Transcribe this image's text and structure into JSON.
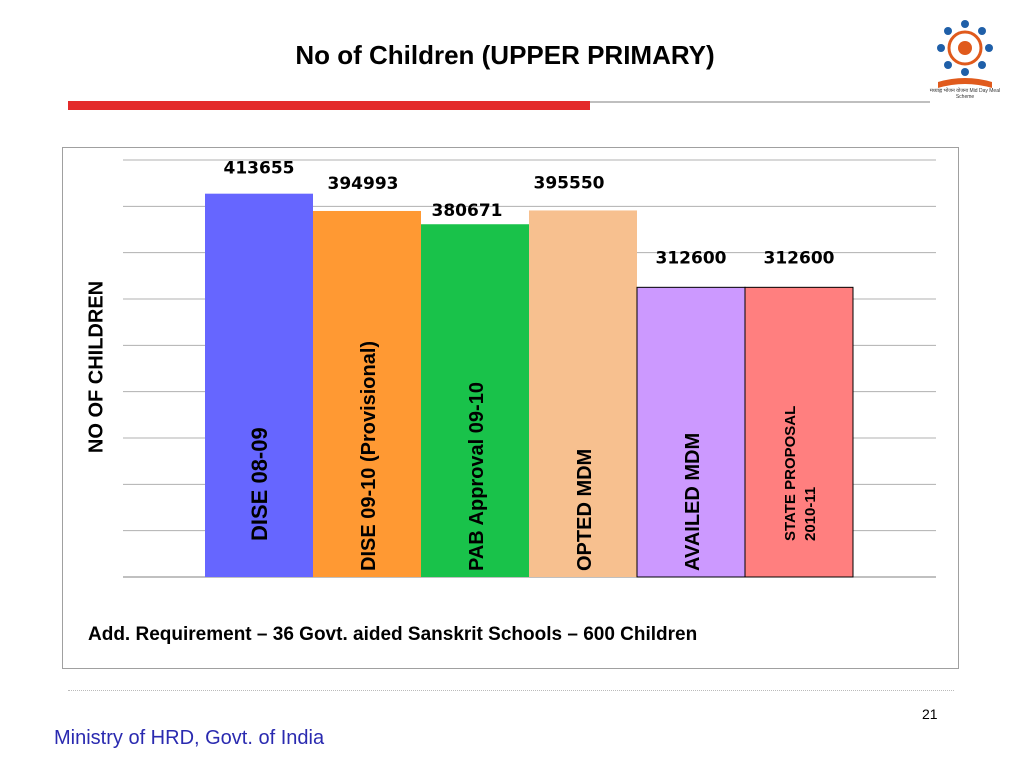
{
  "slide": {
    "title": "No of Children (UPPER PRIMARY)",
    "page_number": "21",
    "footer": "Ministry of HRD, Govt. of India",
    "note": "Add. Requirement – 36 Govt. aided  Sanskrit Schools – 600 Children",
    "logo_text": "मध्याह्न भोजन योजना Mid Day Meal Scheme"
  },
  "chart_data": {
    "type": "bar",
    "title": "No of Children (UPPER PRIMARY)",
    "xlabel": "",
    "ylabel": "NO OF CHILDREN",
    "grid": true,
    "ylim": [
      0,
      450000
    ],
    "categories": [
      "DISE 08-09",
      "DISE 09-10 (Provisional)",
      "PAB Approval  09-10",
      "OPTED MDM",
      "AVAILED MDM",
      "STATE PROPOSAL 2010-11"
    ],
    "values": [
      413655,
      394993,
      380671,
      395550,
      312600,
      312600
    ],
    "value_labels": [
      "413655",
      "394993",
      "380671",
      "395550",
      "312600",
      "312600"
    ],
    "colors": [
      "#6666ff",
      "#ff9933",
      "#19c24a",
      "#f7c08f",
      "#cc99ff",
      "#ff7f7f"
    ]
  }
}
